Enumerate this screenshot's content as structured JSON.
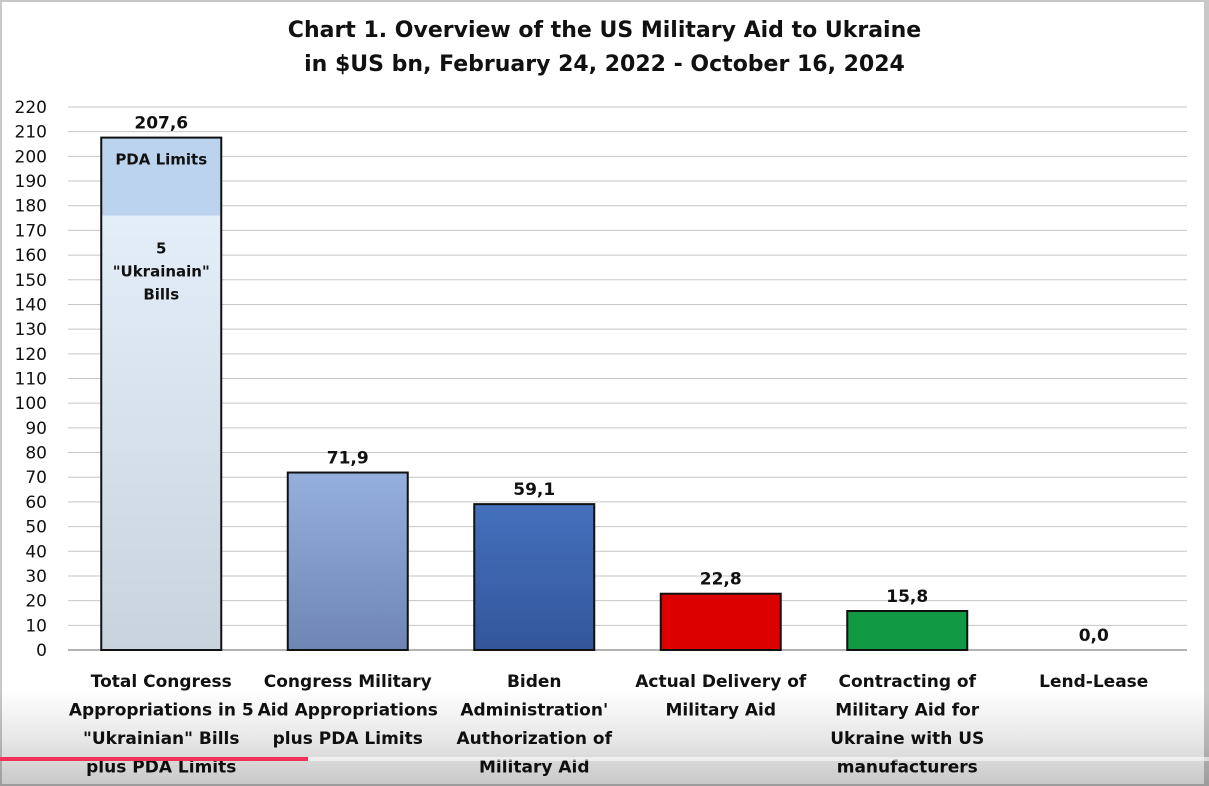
{
  "chart_data": {
    "type": "bar",
    "title_lines": [
      "Chart 1. Overview of the US Military Aid to Ukraine",
      "in $US bn, February 24, 2022 - October 16, 2024"
    ],
    "categories": [
      [
        "Total Congress",
        "Appropriations in 5",
        "\"Ukrainian\" Bills",
        "plus PDA Limits"
      ],
      [
        "Congress Military",
        "Aid Appropriations",
        "plus PDA Limits"
      ],
      [
        "Biden",
        "Administration'",
        "Authorization of",
        "Military Aid"
      ],
      [
        "Actual Delivery of",
        "Military Aid"
      ],
      [
        "Contracting of",
        "Military Aid for",
        "Ukraine with US",
        "manufacturers"
      ],
      [
        "Lend-Lease"
      ]
    ],
    "values": [
      207.6,
      71.9,
      59.1,
      22.8,
      15.8,
      0.0
    ],
    "value_labels": [
      "207,6",
      "71,9",
      "59,1",
      "22,8",
      "15,8",
      "0,0"
    ],
    "bar_colors": [
      "#dde9f6",
      "#8fa9d8",
      "#3d66b4",
      "#dd0000",
      "#119944",
      null
    ],
    "segments": [
      {
        "name": "5 \"Ukrainain\" Bills",
        "label_lines": [
          "5",
          "\"Ukrainain\"",
          "Bills"
        ],
        "from": 0,
        "to": 176,
        "color": "#dde9f6"
      },
      {
        "name": "PDA Limits",
        "label_lines": [
          "PDA Limits"
        ],
        "from": 176,
        "to": 207.6,
        "color": "#bcd3ee"
      }
    ],
    "ylim": [
      0,
      220
    ],
    "ytick_step": 10,
    "grid": true,
    "legend": "none"
  },
  "player": {
    "progress": 0.255
  }
}
